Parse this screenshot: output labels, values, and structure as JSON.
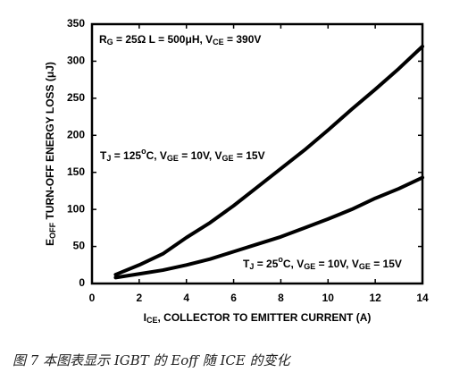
{
  "chart_data": {
    "type": "line",
    "annotation": [
      {
        "text": "R"
      },
      {
        "sub": "G"
      },
      {
        "text": " = 25Ω L = 500μH, V"
      },
      {
        "sub": "CE"
      },
      {
        "text": " = 390V"
      }
    ],
    "x_label": [
      {
        "text": "I"
      },
      {
        "sub": "CE"
      },
      {
        "text": ", COLLECTOR TO EMITTER CURRENT (A)"
      }
    ],
    "y_label": [
      {
        "text": "E"
      },
      {
        "sub": "OFF"
      },
      {
        "text": " TURN-OFF ENERGY LOSS (μJ)"
      }
    ],
    "caption": "图 7 本图表显示 IGBT 的 Eoff 随 ICE 的变化",
    "x": [
      1,
      2,
      3,
      4,
      5,
      6,
      7,
      8,
      9,
      10,
      11,
      12,
      13,
      14
    ],
    "series": [
      {
        "label": [
          {
            "text": "T"
          },
          {
            "sub": "J"
          },
          {
            "text": " = 125"
          },
          {
            "sup": "o"
          },
          {
            "text": "C, V"
          },
          {
            "sub": "GE"
          },
          {
            "text": " = 10V, V"
          },
          {
            "sub": "GE"
          },
          {
            "text": " = 15V"
          }
        ],
        "color": "#000000",
        "values": [
          12,
          25,
          40,
          62,
          82,
          105,
          130,
          155,
          180,
          207,
          235,
          262,
          290,
          320
        ]
      },
      {
        "label": [
          {
            "text": "T"
          },
          {
            "sub": "J"
          },
          {
            "text": " = 25"
          },
          {
            "sup": "o"
          },
          {
            "text": "C, V"
          },
          {
            "sub": "GE"
          },
          {
            "text": " = 10V, V"
          },
          {
            "sub": "GE"
          },
          {
            "text": " = 15V"
          }
        ],
        "color": "#000000",
        "values": [
          8,
          13,
          18,
          25,
          33,
          43,
          53,
          63,
          75,
          87,
          100,
          115,
          128,
          143
        ]
      }
    ],
    "xlim": [
      0,
      14
    ],
    "xticks": [
      0,
      2,
      4,
      6,
      8,
      10,
      12,
      14
    ],
    "ylim": [
      0,
      350
    ],
    "yticks": [
      0,
      50,
      100,
      150,
      200,
      250,
      300,
      350
    ]
  }
}
